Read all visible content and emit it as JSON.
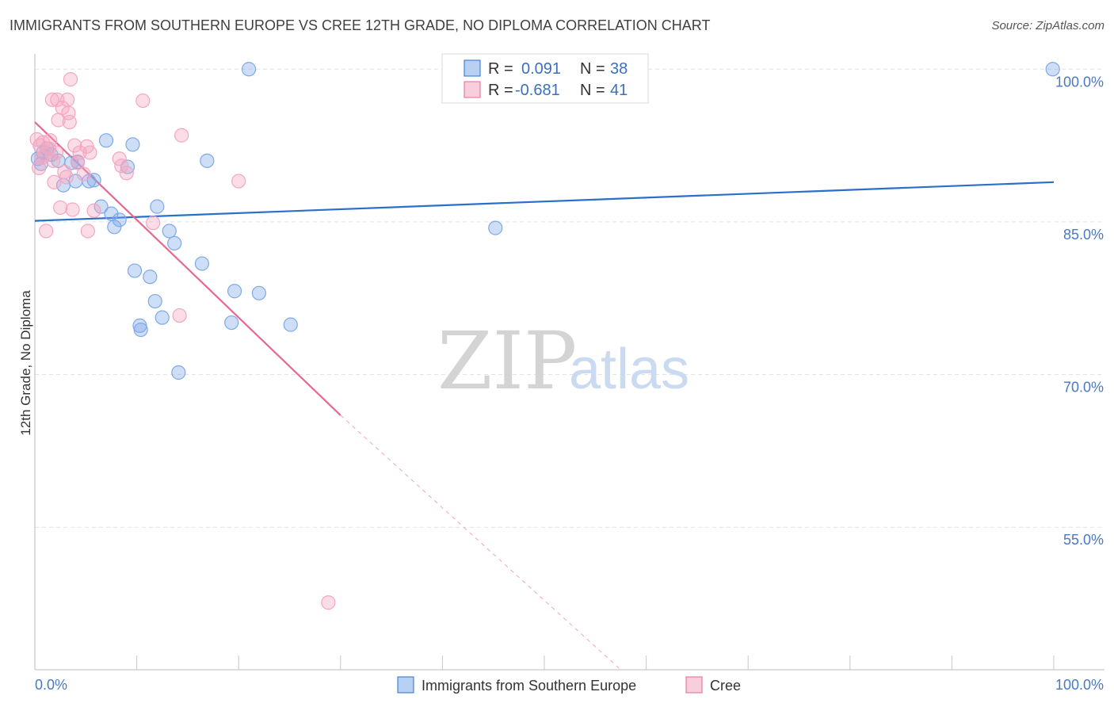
{
  "title": "IMMIGRANTS FROM SOUTHERN EUROPE VS CREE 12TH GRADE, NO DIPLOMA CORRELATION CHART",
  "source": "Source: ZipAtlas.com",
  "watermark": {
    "zip": "ZIP",
    "atlas": "atlas"
  },
  "legend_box": {
    "rows": [
      {
        "r_label": "R = ",
        "r_value": "0.091",
        "n_label": "N = ",
        "n_value": "38"
      },
      {
        "r_label": "R = ",
        "r_value": "-0.681",
        "n_label": "N = ",
        "n_value": "41"
      }
    ]
  },
  "chart_data": {
    "type": "scatter",
    "title": "IMMIGRANTS FROM SOUTHERN EUROPE VS CREE 12TH GRADE, NO DIPLOMA CORRELATION CHART",
    "xlabel": "",
    "ylabel": "12th Grade, No Diploma",
    "xlim": [
      0,
      100
    ],
    "ylim": [
      41,
      101.5
    ],
    "x_tick_labels": [
      "0.0%",
      "100.0%"
    ],
    "y_ticks": [
      {
        "value": 100,
        "label": "100.0%"
      },
      {
        "value": 85,
        "label": "85.0%"
      },
      {
        "value": 70,
        "label": "70.0%"
      },
      {
        "value": 55,
        "label": "55.0%"
      }
    ],
    "grid": true,
    "legend_position": "bottom",
    "series": [
      {
        "name": "Immigrants from Southern Europe",
        "color": "#7ea9e8",
        "line_color": "#2a6fcb",
        "R": 0.091,
        "N": 38,
        "trend": {
          "x": [
            0,
            100
          ],
          "y": [
            85.1,
            88.9
          ]
        },
        "points": [
          [
            0.3,
            91.2
          ],
          [
            0.8,
            91.8
          ],
          [
            1.2,
            92.2
          ],
          [
            1.6,
            91.6
          ],
          [
            2.3,
            91.0
          ],
          [
            2.8,
            88.6
          ],
          [
            3.6,
            90.8
          ],
          [
            4.2,
            90.9
          ],
          [
            5.3,
            89.0
          ],
          [
            5.8,
            89.1
          ],
          [
            6.5,
            86.5
          ],
          [
            7.0,
            93.0
          ],
          [
            7.5,
            85.8
          ],
          [
            7.8,
            84.5
          ],
          [
            8.3,
            85.2
          ],
          [
            9.1,
            90.4
          ],
          [
            9.6,
            92.6
          ],
          [
            9.8,
            80.2
          ],
          [
            10.3,
            74.8
          ],
          [
            10.4,
            74.4
          ],
          [
            11.3,
            79.6
          ],
          [
            11.8,
            77.2
          ],
          [
            12.0,
            86.5
          ],
          [
            12.5,
            75.6
          ],
          [
            13.2,
            84.1
          ],
          [
            13.7,
            82.9
          ],
          [
            14.1,
            70.2
          ],
          [
            16.4,
            80.9
          ],
          [
            16.9,
            91.0
          ],
          [
            19.3,
            75.1
          ],
          [
            19.6,
            78.2
          ],
          [
            21.0,
            100.0
          ],
          [
            22.0,
            78.0
          ],
          [
            25.1,
            74.9
          ],
          [
            45.2,
            84.4
          ],
          [
            99.9,
            100.0
          ],
          [
            0.6,
            90.7
          ],
          [
            4.0,
            89.0
          ]
        ]
      },
      {
        "name": "Cree",
        "color": "#f4a6bf",
        "line_color": "#e8678f",
        "R": -0.681,
        "N": 41,
        "trend": {
          "x": [
            0,
            30
          ],
          "y": [
            94.8,
            66.0
          ]
        },
        "trend_dashed": {
          "x": [
            30,
            57.5
          ],
          "y": [
            66.0,
            41.0
          ]
        },
        "points": [
          [
            0.2,
            93.1
          ],
          [
            0.4,
            90.3
          ],
          [
            0.7,
            91.3
          ],
          [
            0.8,
            92.8
          ],
          [
            1.0,
            91.6
          ],
          [
            1.1,
            84.1
          ],
          [
            1.4,
            92.2
          ],
          [
            1.5,
            93.0
          ],
          [
            1.7,
            97.0
          ],
          [
            1.9,
            88.9
          ],
          [
            2.1,
            91.8
          ],
          [
            2.2,
            97.0
          ],
          [
            2.3,
            95.0
          ],
          [
            2.5,
            86.4
          ],
          [
            2.7,
            96.2
          ],
          [
            2.9,
            89.9
          ],
          [
            3.1,
            89.4
          ],
          [
            3.2,
            97.0
          ],
          [
            3.3,
            95.7
          ],
          [
            3.4,
            94.8
          ],
          [
            3.5,
            99.0
          ],
          [
            3.7,
            86.2
          ],
          [
            3.9,
            92.5
          ],
          [
            4.2,
            90.8
          ],
          [
            4.4,
            91.8
          ],
          [
            4.8,
            89.7
          ],
          [
            5.1,
            92.4
          ],
          [
            5.2,
            84.1
          ],
          [
            5.4,
            91.8
          ],
          [
            5.8,
            86.1
          ],
          [
            8.3,
            91.2
          ],
          [
            8.5,
            90.5
          ],
          [
            10.6,
            96.9
          ],
          [
            11.6,
            84.9
          ],
          [
            14.2,
            75.8
          ],
          [
            14.4,
            93.5
          ],
          [
            20.0,
            89.0
          ],
          [
            28.8,
            47.6
          ],
          [
            0.5,
            92.5
          ],
          [
            1.8,
            91.0
          ],
          [
            9.0,
            89.8
          ]
        ]
      }
    ]
  }
}
